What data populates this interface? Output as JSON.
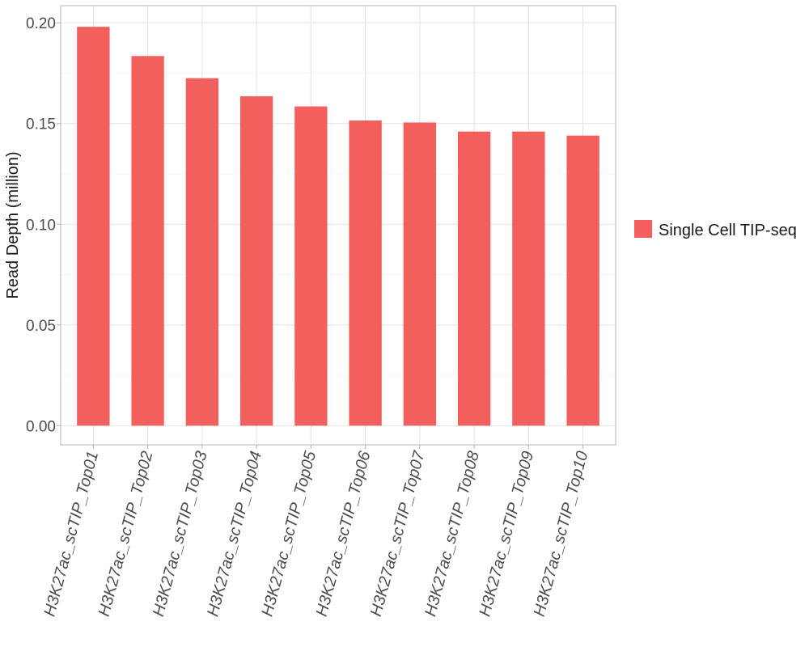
{
  "chart_data": {
    "type": "bar",
    "categories": [
      "H3K27ac_scTIP_Top01",
      "H3K27ac_scTIP_Top02",
      "H3K27ac_scTIP_Top03",
      "H3K27ac_scTIP_Top04",
      "H3K27ac_scTIP_Top05",
      "H3K27ac_scTIP_Top06",
      "H3K27ac_scTIP_Top07",
      "H3K27ac_scTIP_Top08",
      "H3K27ac_scTIP_Top09",
      "H3K27ac_scTIP_Top10"
    ],
    "series": [
      {
        "name": "Single Cell TIP-seq",
        "color": "#f35f5c",
        "values": [
          0.198,
          0.1835,
          0.1725,
          0.1635,
          0.1585,
          0.1515,
          0.1505,
          0.146,
          0.146,
          0.144
        ]
      }
    ],
    "title": "",
    "xlabel": "",
    "ylabel": "Read Depth (million)",
    "ylim": [
      -0.0095,
      0.2085
    ],
    "y_ticks": [
      "0.00",
      "0.05",
      "0.10",
      "0.15",
      "0.20"
    ],
    "grid": true,
    "legend_position": "right"
  }
}
